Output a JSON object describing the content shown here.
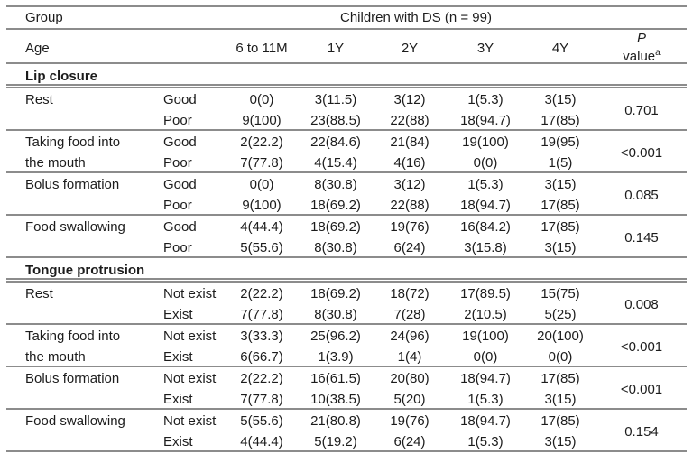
{
  "colors": {
    "line": "#8c8c8c",
    "text": "#1c1c1c",
    "bg": "#ffffff"
  },
  "header": {
    "group": "Group",
    "span": "Children with DS (n = 99)",
    "age": "Age",
    "cols": [
      "6 to 11M",
      "1Y",
      "2Y",
      "3Y",
      "4Y"
    ],
    "p1": "P",
    "p2": "value",
    "sup": "a"
  },
  "sections": [
    {
      "name": "Lip closure",
      "groups": [
        {
          "item": "Rest",
          "c1": "Good",
          "c2": "Poor",
          "a": [
            "0(0)",
            "3(11.5)",
            "3(12)",
            "1(5.3)",
            "3(15)"
          ],
          "b": [
            "9(100)",
            "23(88.5)",
            "22(88)",
            "18(94.7)",
            "17(85)"
          ],
          "p": "0.701"
        },
        {
          "item": "Taking food into the mouth",
          "c1": "Good",
          "c2": "Poor",
          "a": [
            "2(22.2)",
            "22(84.6)",
            "21(84)",
            "19(100)",
            "19(95)"
          ],
          "b": [
            "7(77.8)",
            "4(15.4)",
            "4(16)",
            "0(0)",
            "1(5)"
          ],
          "p": "<0.001"
        },
        {
          "item": "Bolus formation",
          "c1": "Good",
          "c2": "Poor",
          "a": [
            "0(0)",
            "8(30.8)",
            "3(12)",
            "1(5.3)",
            "3(15)"
          ],
          "b": [
            "9(100)",
            "18(69.2)",
            "22(88)",
            "18(94.7)",
            "17(85)"
          ],
          "p": "0.085"
        },
        {
          "item": "Food swallowing",
          "c1": "Good",
          "c2": "Poor",
          "a": [
            "4(44.4)",
            "18(69.2)",
            "19(76)",
            "16(84.2)",
            "17(85)"
          ],
          "b": [
            "5(55.6)",
            "8(30.8)",
            "6(24)",
            "3(15.8)",
            "3(15)"
          ],
          "p": "0.145"
        }
      ]
    },
    {
      "name": "Tongue protrusion",
      "groups": [
        {
          "item": "Rest",
          "c1": "Not exist",
          "c2": "Exist",
          "a": [
            "2(22.2)",
            "18(69.2)",
            "18(72)",
            "17(89.5)",
            "15(75)"
          ],
          "b": [
            "7(77.8)",
            "8(30.8)",
            "7(28)",
            "2(10.5)",
            "5(25)"
          ],
          "p": "0.008"
        },
        {
          "item": "Taking food into the mouth",
          "c1": "Not exist",
          "c2": "Exist",
          "a": [
            "3(33.3)",
            "25(96.2)",
            "24(96)",
            "19(100)",
            "20(100)"
          ],
          "b": [
            "6(66.7)",
            "1(3.9)",
            "1(4)",
            "0(0)",
            "0(0)"
          ],
          "p": "<0.001"
        },
        {
          "item": "Bolus formation",
          "c1": "Not exist",
          "c2": "Exist",
          "a": [
            "2(22.2)",
            "16(61.5)",
            "20(80)",
            "18(94.7)",
            "17(85)"
          ],
          "b": [
            "7(77.8)",
            "10(38.5)",
            "5(20)",
            "1(5.3)",
            "3(15)"
          ],
          "p": "<0.001"
        },
        {
          "item": "Food swallowing",
          "c1": "Not exist",
          "c2": "Exist",
          "a": [
            "5(55.6)",
            "21(80.8)",
            "19(76)",
            "18(94.7)",
            "17(85)"
          ],
          "b": [
            "4(44.4)",
            "5(19.2)",
            "6(24)",
            "1(5.3)",
            "3(15)"
          ],
          "p": "0.154"
        }
      ]
    }
  ]
}
